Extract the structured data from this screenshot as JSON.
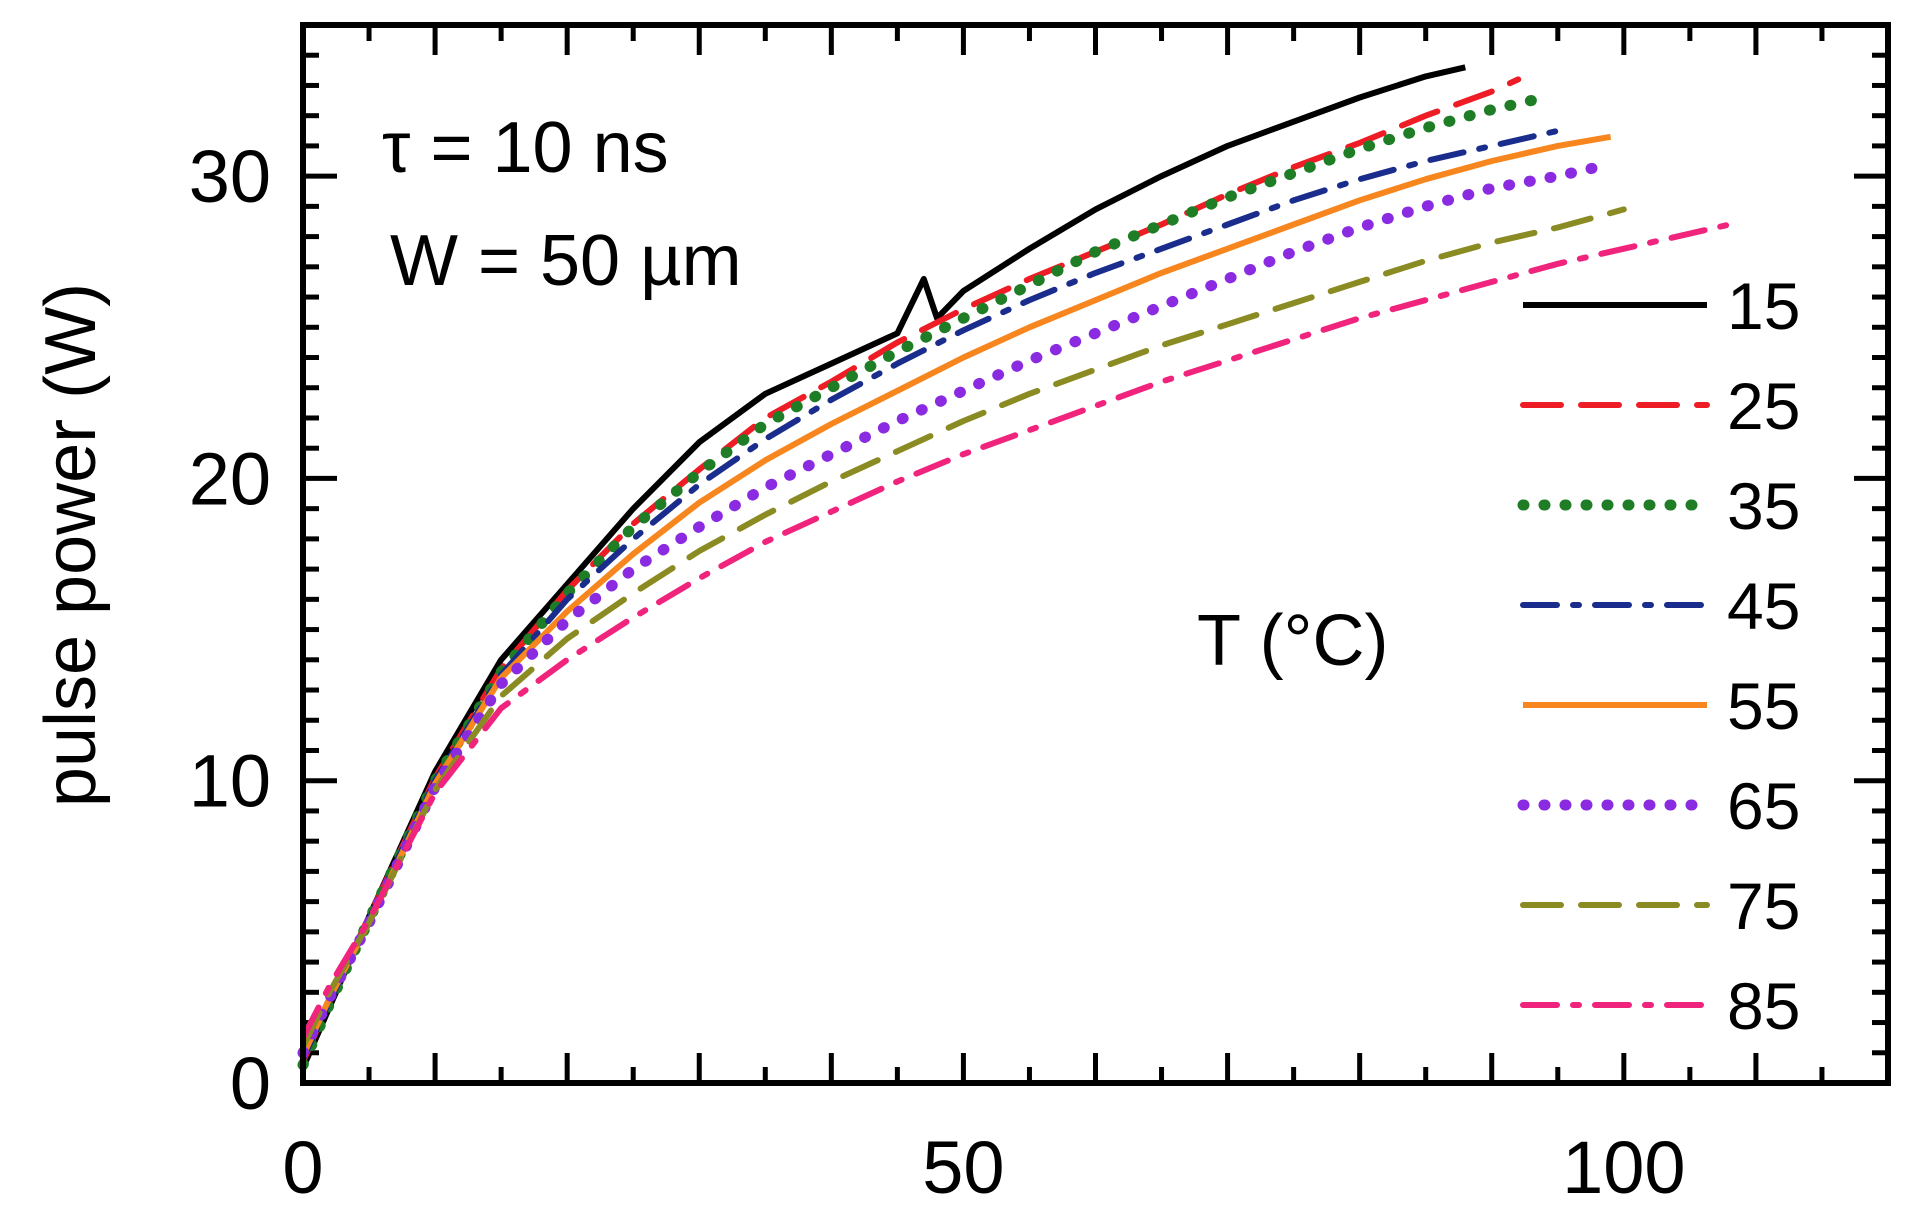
{
  "chart_data": {
    "type": "line",
    "title": "",
    "xlabel": "",
    "ylabel": "pulse power (W)",
    "xlim": [
      0,
      120
    ],
    "ylim": [
      0,
      35
    ],
    "x_ticks": [
      0,
      50,
      100
    ],
    "y_ticks": [
      0,
      10,
      20,
      30
    ],
    "grid": false,
    "legend_placement": "right",
    "legend_title": "T (°C)",
    "annotations": [
      "τ  = 10 ns",
      "W = 50 µm"
    ],
    "series": [
      {
        "name": "15",
        "color": "#000000",
        "dash": "solid",
        "x": [
          0,
          2,
          5,
          10,
          15,
          20,
          25,
          30,
          35,
          40,
          45,
          47,
          48,
          50,
          55,
          60,
          65,
          70,
          75,
          80,
          85,
          88
        ],
        "y": [
          0.5,
          2.5,
          5.5,
          10.3,
          14.0,
          16.5,
          19.0,
          21.2,
          22.8,
          23.8,
          24.8,
          26.6,
          25.3,
          26.2,
          27.6,
          28.9,
          30.0,
          31.0,
          31.8,
          32.6,
          33.3,
          33.6
        ]
      },
      {
        "name": "25",
        "color": "#ee1c25",
        "dash": "dash",
        "x": [
          0,
          2,
          5,
          10,
          15,
          20,
          25,
          30,
          35,
          40,
          45,
          50,
          55,
          60,
          65,
          70,
          75,
          80,
          85,
          90,
          92
        ],
        "y": [
          0.7,
          2.7,
          5.5,
          10.1,
          13.7,
          16.3,
          18.5,
          20.3,
          22.0,
          23.2,
          24.5,
          25.6,
          26.6,
          27.5,
          28.4,
          29.4,
          30.3,
          31.1,
          32.0,
          32.8,
          33.2
        ]
      },
      {
        "name": "35",
        "color": "#1e7d25",
        "dash": "dot",
        "x": [
          0,
          2,
          5,
          10,
          15,
          20,
          25,
          30,
          35,
          40,
          45,
          50,
          55,
          60,
          65,
          70,
          75,
          80,
          85,
          90,
          94
        ],
        "y": [
          0.6,
          2.6,
          5.4,
          10.0,
          13.6,
          16.2,
          18.4,
          20.2,
          21.8,
          23.0,
          24.2,
          25.3,
          26.4,
          27.5,
          28.4,
          29.3,
          30.1,
          30.9,
          31.6,
          32.2,
          32.6
        ]
      },
      {
        "name": "45",
        "color": "#1a2d8c",
        "dash": "dashdot",
        "x": [
          0,
          2,
          5,
          10,
          15,
          20,
          25,
          30,
          35,
          40,
          45,
          50,
          55,
          60,
          65,
          70,
          75,
          80,
          85,
          90,
          95
        ],
        "y": [
          0.8,
          2.7,
          5.4,
          10.0,
          13.5,
          16.0,
          18.0,
          19.8,
          21.3,
          22.6,
          23.8,
          24.9,
          25.9,
          26.8,
          27.6,
          28.4,
          29.2,
          29.9,
          30.5,
          31.0,
          31.5
        ]
      },
      {
        "name": "55",
        "color": "#f7861e",
        "dash": "solid",
        "x": [
          0,
          2,
          5,
          10,
          15,
          20,
          25,
          30,
          35,
          40,
          45,
          50,
          55,
          60,
          65,
          70,
          75,
          80,
          85,
          90,
          95,
          99
        ],
        "y": [
          0.9,
          2.8,
          5.3,
          9.9,
          13.4,
          15.6,
          17.5,
          19.2,
          20.6,
          21.8,
          22.9,
          24.0,
          25.0,
          25.9,
          26.8,
          27.6,
          28.4,
          29.2,
          29.9,
          30.5,
          31.0,
          31.3
        ]
      },
      {
        "name": "65",
        "color": "#8a2be2",
        "dash": "dot",
        "x": [
          0,
          2,
          5,
          10,
          15,
          20,
          25,
          30,
          35,
          40,
          45,
          50,
          55,
          60,
          65,
          70,
          75,
          80,
          85,
          90,
          95,
          98
        ],
        "y": [
          1.0,
          2.8,
          5.3,
          9.8,
          13.2,
          15.3,
          17.0,
          18.4,
          19.7,
          20.8,
          21.9,
          22.9,
          23.9,
          24.8,
          25.7,
          26.6,
          27.5,
          28.3,
          29.0,
          29.6,
          30.0,
          30.3
        ]
      },
      {
        "name": "75",
        "color": "#8b8b23",
        "dash": "dash",
        "x": [
          0,
          2,
          5,
          10,
          15,
          20,
          25,
          30,
          35,
          40,
          45,
          50,
          55,
          60,
          65,
          70,
          75,
          80,
          85,
          90,
          95,
          100
        ],
        "y": [
          1.2,
          3.0,
          5.3,
          9.7,
          12.8,
          14.7,
          16.2,
          17.6,
          18.8,
          19.9,
          20.9,
          21.9,
          22.8,
          23.6,
          24.4,
          25.1,
          25.8,
          26.5,
          27.2,
          27.8,
          28.3,
          28.9
        ]
      },
      {
        "name": "85",
        "color": "#f0237d",
        "dash": "dashdot",
        "x": [
          0,
          2,
          5,
          10,
          15,
          20,
          25,
          30,
          35,
          40,
          45,
          50,
          55,
          60,
          65,
          70,
          75,
          80,
          85,
          90,
          95,
          100,
          108
        ],
        "y": [
          1.5,
          3.2,
          5.4,
          9.6,
          12.4,
          14.0,
          15.4,
          16.7,
          17.9,
          18.9,
          19.9,
          20.8,
          21.6,
          22.4,
          23.2,
          23.9,
          24.6,
          25.3,
          25.9,
          26.5,
          27.1,
          27.6,
          28.4
        ]
      }
    ]
  }
}
